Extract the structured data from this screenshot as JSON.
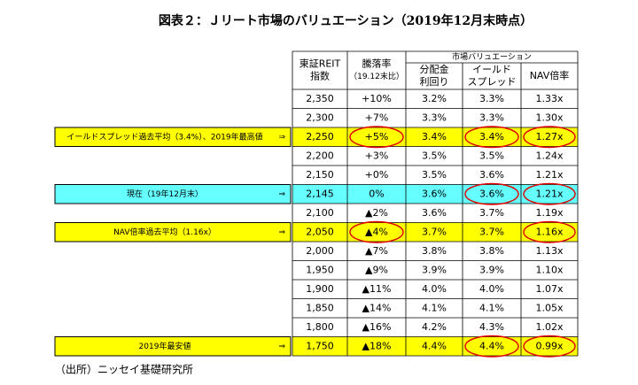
{
  "title": "図表２：Ｊリート市場のバリュエーション（2019年12月末時点）",
  "table": {
    "headers": [
      [
        "東証REIT",
        "指数"
      ],
      [
        "騰落率",
        "（19.12末比）"
      ],
      [
        "分配金",
        "利回り"
      ],
      [
        "イールド",
        "スプレッド"
      ],
      [
        "NAV倍率"
      ]
    ],
    "group_header": "市場バリュエーション",
    "rows": [
      {
        "cells": [
          "2,350",
          "+10%",
          "3.2%",
          "3.3%",
          "1.33x"
        ]
      },
      {
        "cells": [
          "2,300",
          "+7%",
          "3.3%",
          "3.3%",
          "1.30x"
        ]
      },
      {
        "cells": [
          "2,250",
          "+5%",
          "3.4%",
          "3.4%",
          "1.27x"
        ],
        "label": "イールドスプレッド過去平均（3.4%）、2019年最高値",
        "arrow": "⇒",
        "highlight": "#ffff00",
        "circled": [
          1,
          3,
          4
        ]
      },
      {
        "cells": [
          "2,200",
          "+3%",
          "3.5%",
          "3.5%",
          "1.24x"
        ]
      },
      {
        "cells": [
          "2,150",
          "+0%",
          "3.5%",
          "3.6%",
          "1.21x"
        ]
      },
      {
        "cells": [
          "2,145",
          "0%",
          "3.6%",
          "3.6%",
          "1.21x"
        ],
        "label": "現在（19年12月末）",
        "arrow": "⇒",
        "highlight": "#66ffff",
        "circled": [
          3,
          4
        ]
      },
      {
        "cells": [
          "2,100",
          "▲2%",
          "3.6%",
          "3.7%",
          "1.19x"
        ]
      },
      {
        "cells": [
          "2,050",
          "▲4%",
          "3.7%",
          "3.7%",
          "1.16x"
        ],
        "label": "NAV倍率過去平均（1.16x）",
        "arrow": "⇒",
        "highlight": "#ffff00",
        "circled": [
          1,
          4
        ]
      },
      {
        "cells": [
          "2,000",
          "▲7%",
          "3.8%",
          "3.8%",
          "1.13x"
        ]
      },
      {
        "cells": [
          "1,950",
          "▲9%",
          "3.9%",
          "3.9%",
          "1.10x"
        ]
      },
      {
        "cells": [
          "1,900",
          "▲11%",
          "4.0%",
          "4.0%",
          "1.07x"
        ]
      },
      {
        "cells": [
          "1,850",
          "▲14%",
          "4.1%",
          "4.1%",
          "1.05x"
        ]
      },
      {
        "cells": [
          "1,800",
          "▲16%",
          "4.2%",
          "4.3%",
          "1.02x"
        ]
      },
      {
        "cells": [
          "1,750",
          "▲18%",
          "4.4%",
          "4.4%",
          "0.99x"
        ],
        "label": "2019年最安値",
        "arrow": "⇒",
        "highlight": "#ffff00",
        "circled": [
          3,
          4
        ]
      }
    ]
  },
  "source": "（出所）ニッセイ基礎研究所"
}
